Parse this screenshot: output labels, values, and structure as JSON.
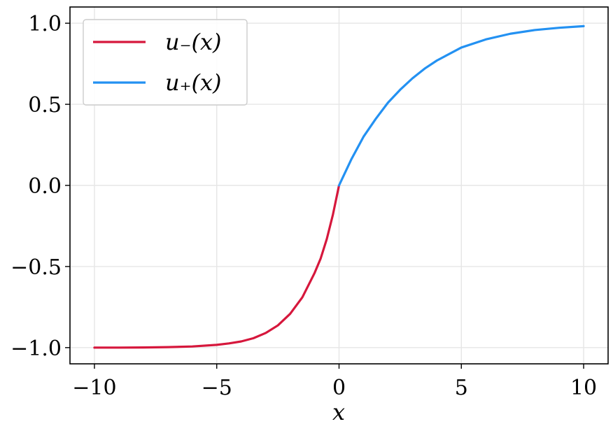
{
  "chart_data": {
    "type": "line",
    "title": "",
    "xlabel": "x",
    "ylabel": "",
    "xlim": [
      -11,
      11
    ],
    "ylim": [
      -1.1,
      1.1
    ],
    "xticks": [
      -10,
      -5,
      0,
      5,
      10
    ],
    "xtick_labels": [
      "−10",
      "−5",
      "0",
      "5",
      "10"
    ],
    "yticks": [
      -1.0,
      -0.5,
      0.0,
      0.5,
      1.0
    ],
    "ytick_labels": [
      "−1.0",
      "−0.5",
      "0.0",
      "0.5",
      "1.0"
    ],
    "grid": true,
    "legend_position": "top-left",
    "series": [
      {
        "name": "u₋(x)",
        "color": "#d6173c",
        "x": [
          -10,
          -9,
          -8,
          -7,
          -6,
          -5,
          -4.5,
          -4,
          -3.5,
          -3,
          -2.5,
          -2,
          -1.5,
          -1,
          -0.75,
          -0.5,
          -0.25,
          0
        ],
        "y": [
          -1.0,
          -1.0,
          -0.999,
          -0.997,
          -0.993,
          -0.983,
          -0.974,
          -0.962,
          -0.942,
          -0.91,
          -0.863,
          -0.792,
          -0.69,
          -0.54,
          -0.45,
          -0.33,
          -0.18,
          0.0
        ]
      },
      {
        "name": "u₊(x)",
        "color": "#2391f2",
        "x": [
          0,
          0.5,
          1,
          1.5,
          2,
          2.5,
          3,
          3.5,
          4,
          5,
          6,
          7,
          8,
          9,
          10
        ],
        "y": [
          0.0,
          0.16,
          0.3,
          0.41,
          0.51,
          0.59,
          0.66,
          0.72,
          0.77,
          0.85,
          0.9,
          0.935,
          0.958,
          0.972,
          0.982
        ]
      }
    ]
  }
}
